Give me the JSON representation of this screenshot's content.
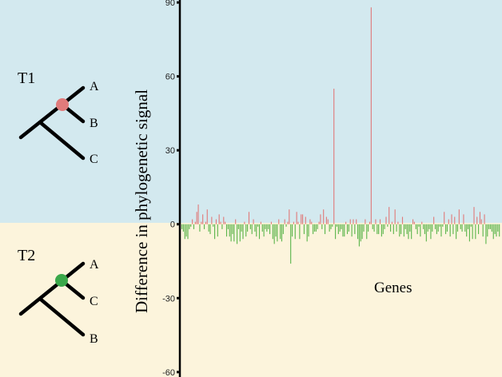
{
  "colors": {
    "top_bg": "#d3e9ef",
    "bottom_bg": "#fcf4dc",
    "positive": "#e07b7b",
    "negative": "#5cb54c",
    "t1_node": "#e07b7b",
    "t2_node": "#3aa84a"
  },
  "trees": [
    {
      "title": "T1",
      "leaves": [
        "A",
        "B",
        "C"
      ],
      "node_color": "#e07b7b"
    },
    {
      "title": "T2",
      "leaves": [
        "A",
        "C",
        "B"
      ],
      "node_color": "#3aa84a"
    }
  ],
  "chart_data": {
    "type": "bar",
    "title": "",
    "xlabel": "Genes",
    "ylabel": "Difference in phylogenetic signal",
    "ylim": [
      -62,
      91
    ],
    "yticks": [
      -60,
      -30,
      0,
      30,
      60,
      90
    ],
    "grid": false,
    "legend": "none",
    "series": [
      {
        "name": "",
        "values": [
          -2,
          -3,
          -6,
          -5,
          -6,
          -2,
          -1,
          2,
          -2,
          1,
          5,
          8,
          -3,
          1,
          4,
          -2,
          1,
          6,
          -3,
          -4,
          3,
          -1,
          -6,
          2,
          -5,
          4,
          1,
          -2,
          3,
          1,
          -5,
          -2,
          -5,
          -7,
          -4,
          -7,
          2,
          -8,
          -2,
          -7,
          -3,
          -6,
          1,
          -5,
          -3,
          5,
          -2,
          -4,
          2,
          -3,
          -5,
          -1,
          -6,
          1,
          -3,
          -5,
          -2,
          -3,
          -2,
          -4,
          1,
          -6,
          -8,
          -5,
          -7,
          2,
          -6,
          -7,
          -4,
          2,
          -1,
          1,
          6,
          -16,
          -5,
          1,
          -6,
          5,
          1,
          -6,
          4,
          4,
          -4,
          3,
          -7,
          -5,
          2,
          1,
          -4,
          -3,
          -3,
          -2,
          1,
          4,
          -2,
          6,
          -4,
          3,
          2,
          -3,
          -2,
          -1,
          55,
          -6,
          -1,
          -4,
          -3,
          -2,
          -5,
          -5,
          1,
          -4,
          -3,
          2,
          -5,
          2,
          -4,
          2,
          -6,
          -9,
          -7,
          -6,
          -3,
          2,
          -6,
          -3,
          1,
          88,
          -2,
          -3,
          2,
          -4,
          -4,
          2,
          -5,
          -4,
          -2,
          3,
          -1,
          7,
          -3,
          1,
          -4,
          6,
          -3,
          1,
          -5,
          -4,
          3,
          -5,
          -2,
          -4,
          -6,
          -3,
          -6,
          2,
          1,
          -2,
          -4,
          -1,
          -5,
          1,
          -2,
          -4,
          -7,
          -3,
          -2,
          -6,
          -3,
          3,
          -2,
          -4,
          -3,
          -1,
          -5,
          -1,
          5,
          -4,
          -3,
          2,
          -5,
          4,
          -4,
          3,
          -6,
          -3,
          6,
          -2,
          -3,
          4,
          -3,
          -5,
          -2,
          -7,
          -1,
          -6,
          7,
          -6,
          3,
          -4,
          5,
          2,
          -5,
          4,
          -8,
          -5,
          -2,
          -2,
          -3,
          -6,
          -4,
          -5,
          -3,
          -5
        ]
      }
    ]
  }
}
